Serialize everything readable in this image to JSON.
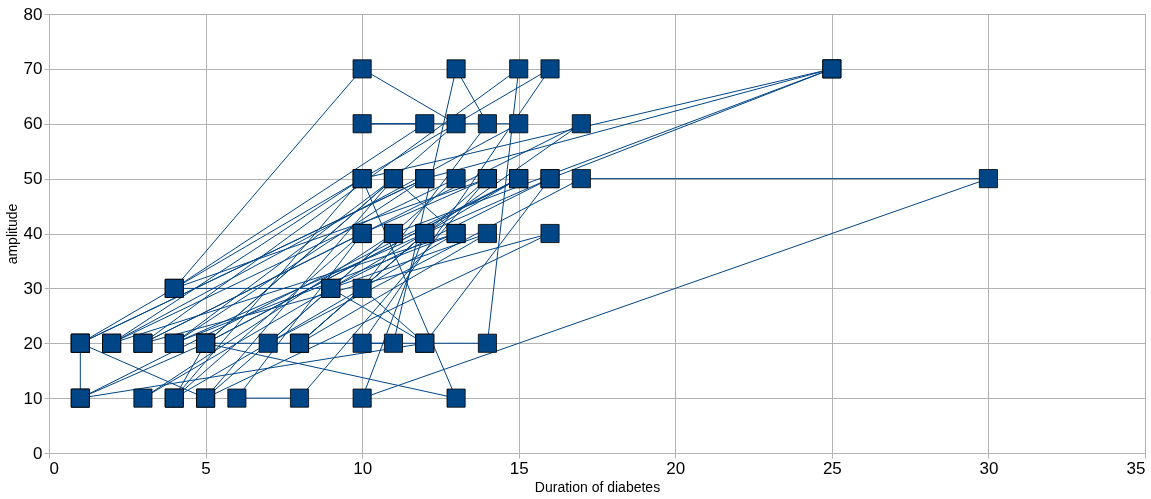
{
  "chart_data": {
    "type": "line",
    "xlabel": "Duration of diabetes",
    "ylabel": "amplitude",
    "xlim": [
      0,
      35
    ],
    "xticks": [
      0,
      5,
      10,
      15,
      20,
      25,
      30,
      35
    ],
    "ylim": [
      0,
      80
    ],
    "yticks": [
      0,
      10,
      20,
      30,
      40,
      50,
      60,
      70,
      80
    ],
    "grid": true,
    "marker": "square",
    "line_style": "solid",
    "series": [
      {
        "color": "#004586",
        "x": [
          1,
          1,
          5,
          4,
          10,
          2,
          13,
          4,
          12,
          1,
          5,
          16,
          3,
          10,
          6,
          8,
          14,
          4,
          10,
          13,
          5,
          15,
          3,
          11,
          7,
          17,
          30,
          10,
          12,
          8,
          14,
          9,
          16,
          4,
          11,
          5,
          13,
          2,
          15,
          10,
          12,
          4,
          9,
          12,
          10,
          14,
          13,
          11,
          10,
          16,
          1,
          12,
          25,
          10,
          13,
          5,
          14,
          15,
          3,
          17,
          12,
          8,
          14,
          10,
          4,
          13,
          11,
          5,
          15,
          1,
          12,
          16,
          25,
          11
        ],
        "values": [
          20,
          10,
          20,
          10,
          50,
          20,
          40,
          20,
          50,
          20,
          10,
          40,
          20,
          40,
          10,
          10,
          50,
          30,
          70,
          60,
          20,
          50,
          10,
          40,
          20,
          50,
          50,
          10,
          40,
          20,
          40,
          30,
          50,
          20,
          50,
          10,
          50,
          20,
          60,
          60,
          60,
          30,
          30,
          20,
          30,
          60,
          70,
          20,
          20,
          70,
          20,
          50,
          70,
          50,
          10,
          20,
          20,
          70,
          20,
          60,
          40,
          20,
          50,
          40,
          10,
          40,
          50,
          20,
          50,
          10,
          20,
          50,
          70,
          40
        ]
      }
    ]
  }
}
